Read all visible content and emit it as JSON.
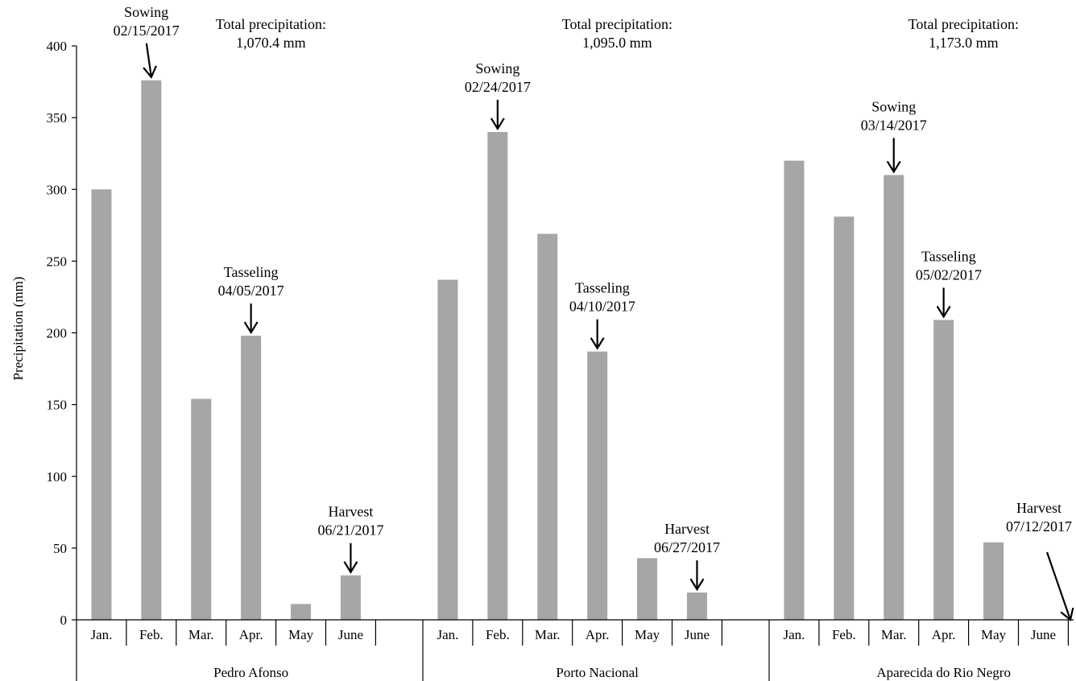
{
  "chart_data": {
    "type": "bar",
    "ylabel": "Precipitation (mm)",
    "ylim": [
      0,
      400
    ],
    "yticks": [
      0,
      50,
      100,
      150,
      200,
      250,
      300,
      350,
      400
    ],
    "bar_color": "#a6a6a6",
    "grid": false,
    "legend": "none",
    "groups": [
      {
        "name": "Pedro Afonso",
        "categories": [
          "Jan.",
          "Feb.",
          "Mar.",
          "Apr.",
          "May",
          "June",
          ""
        ],
        "values": [
          300,
          376,
          154,
          198,
          11,
          31,
          null
        ],
        "total_precipitation": [
          "Total precipitation:",
          "1,070.4 mm"
        ],
        "annotations": [
          {
            "lines": [
              "Sowing",
              "02/15/2017"
            ],
            "category": 1,
            "value": 376
          },
          {
            "lines": [
              "Tasseling",
              "04/05/2017"
            ],
            "category": 3,
            "value": 198
          },
          {
            "lines": [
              "Harvest",
              "06/21/2017"
            ],
            "category": 5,
            "value": 31
          }
        ]
      },
      {
        "name": "Porto Nacional",
        "categories": [
          "Jan.",
          "Feb.",
          "Mar.",
          "Apr.",
          "May",
          "June",
          ""
        ],
        "values": [
          237,
          340,
          269,
          187,
          43,
          19,
          null
        ],
        "total_precipitation": [
          "Total precipitation:",
          "1,095.0 mm"
        ],
        "annotations": [
          {
            "lines": [
              "Sowing",
              "02/24/2017"
            ],
            "category": 1,
            "value": 340
          },
          {
            "lines": [
              "Tasseling",
              "04/10/2017"
            ],
            "category": 3,
            "value": 187
          },
          {
            "lines": [
              "Harvest",
              "06/27/2017"
            ],
            "category": 5,
            "value": 19
          }
        ]
      },
      {
        "name": "Aparecida do Rio Negro",
        "categories": [
          "Jan.",
          "Feb.",
          "Mar.",
          "Apr.",
          "May",
          "June",
          ""
        ],
        "values": [
          320,
          281,
          310,
          209,
          54,
          null,
          null
        ],
        "total_precipitation": [
          "Total  precipitation:",
          "1,173.0 mm"
        ],
        "annotations": [
          {
            "lines": [
              "Sowing",
              "03/14/2017"
            ],
            "category": 2,
            "value": 310
          },
          {
            "lines": [
              "Tasseling",
              "05/02/2017"
            ],
            "category": 3,
            "value": 209
          },
          {
            "lines": [
              "Harvest",
              "07/12/2017"
            ],
            "category": 6,
            "value": 0
          }
        ]
      }
    ]
  }
}
